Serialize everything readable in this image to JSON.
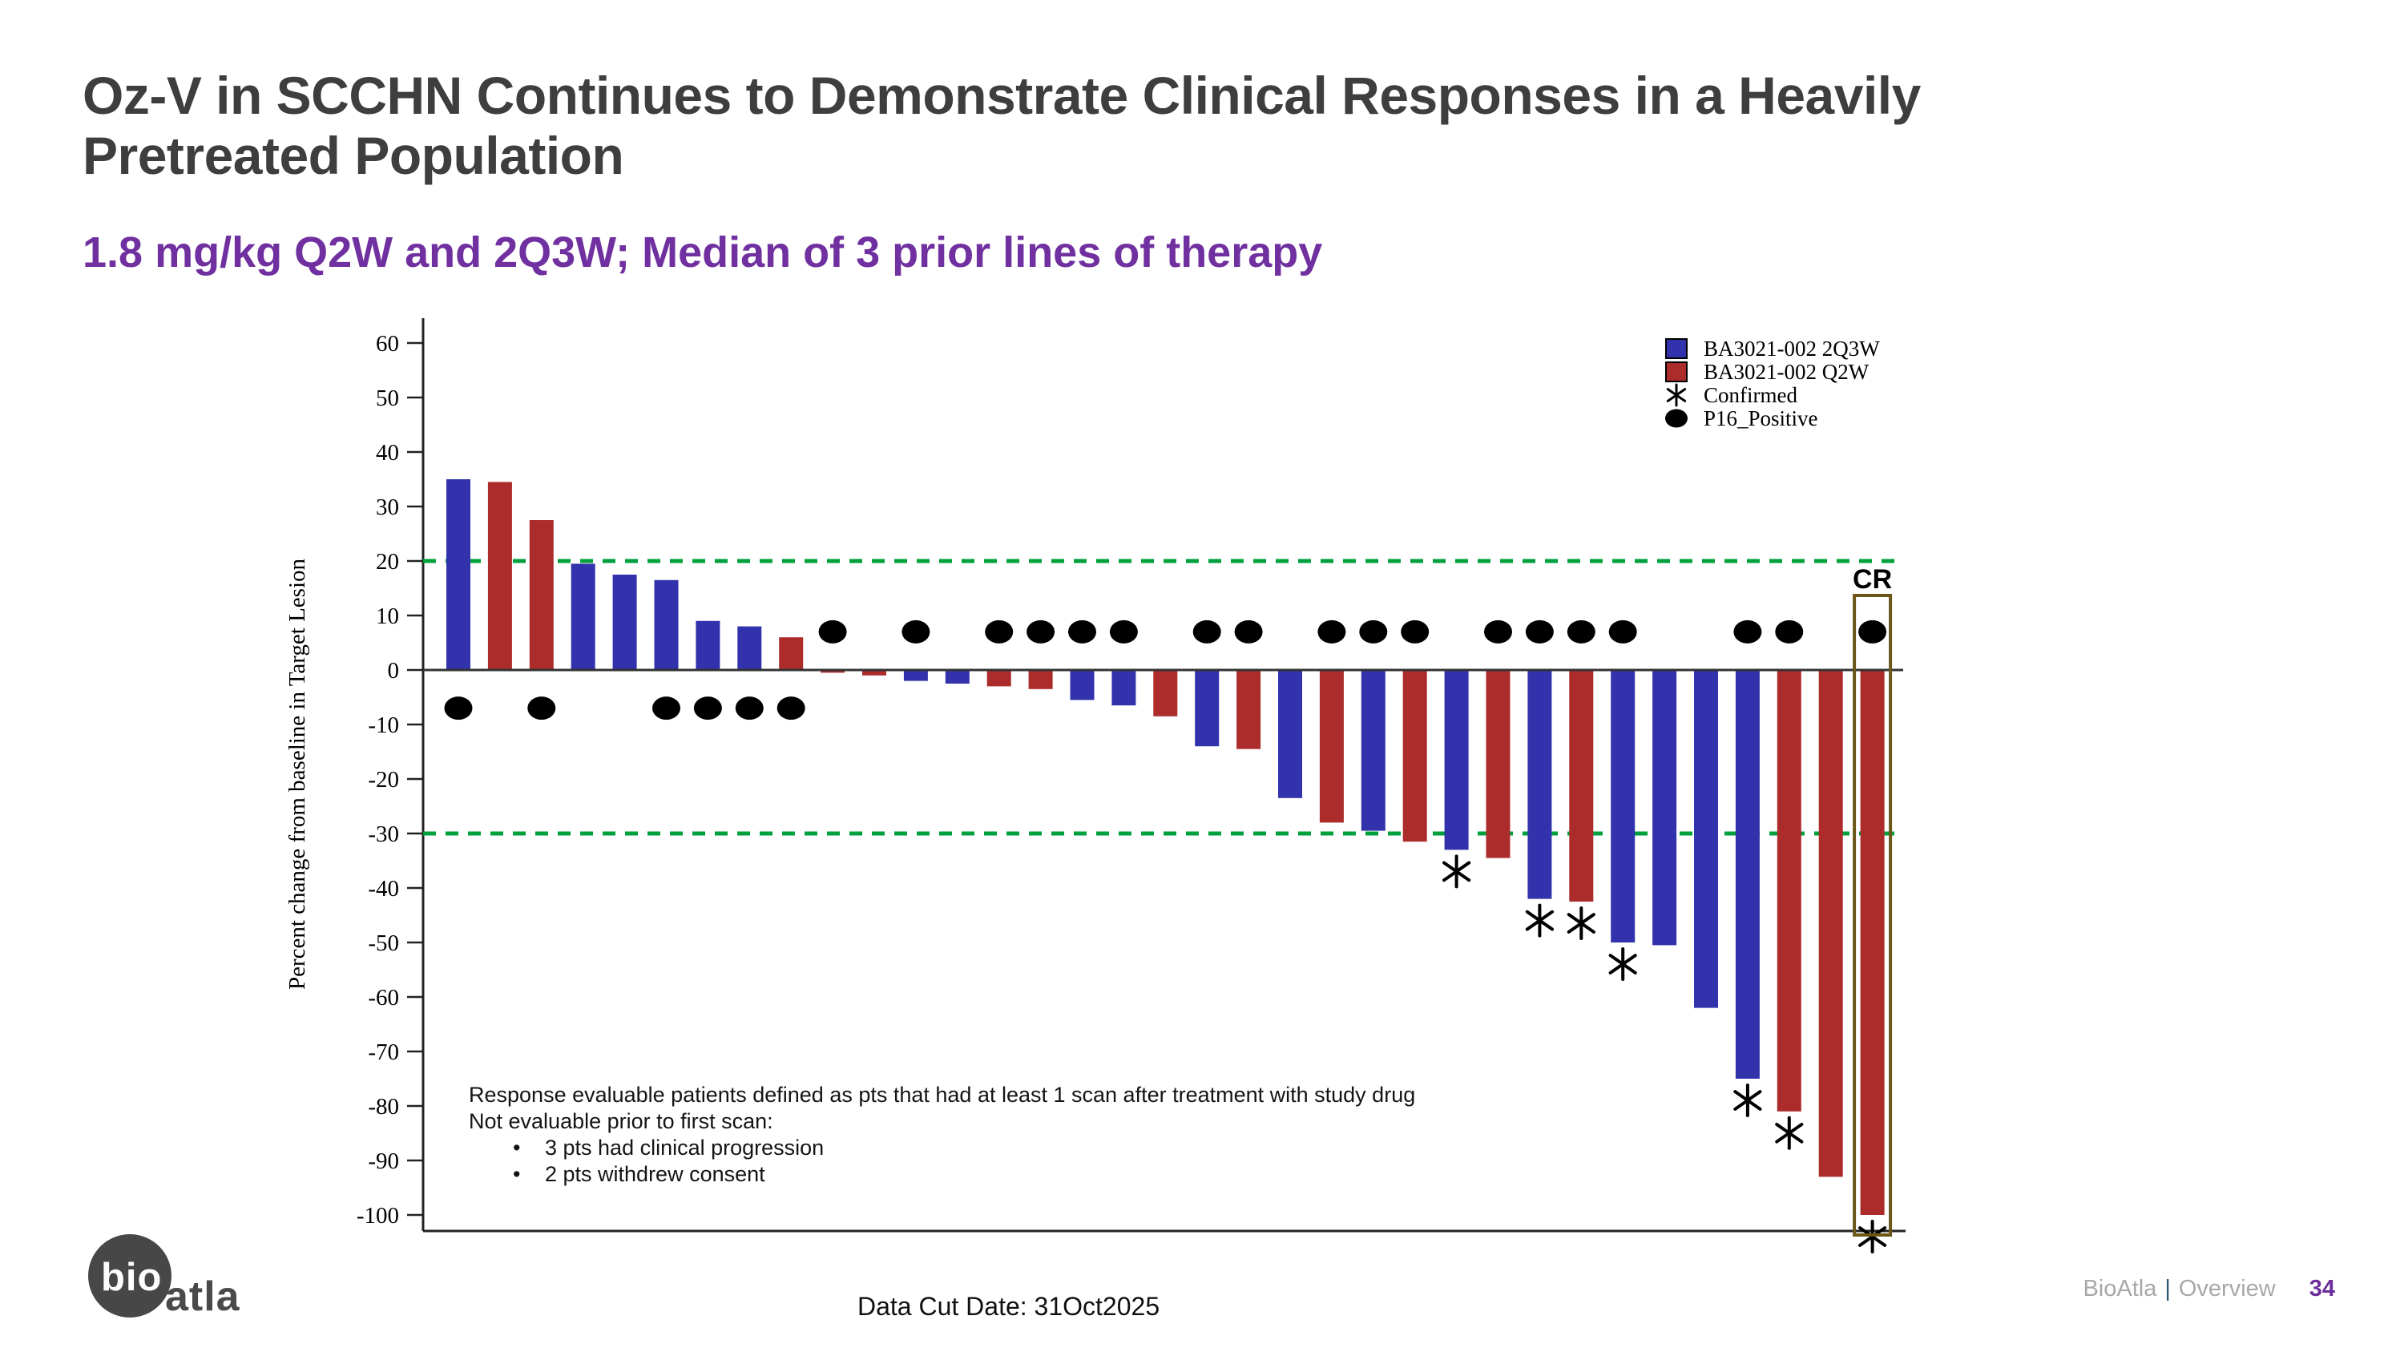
{
  "slide": {
    "title": "Oz-V in SCCHN Continues to Demonstrate Clinical Responses in a Heavily Pretreated Population",
    "subtitle": "1.8 mg/kg Q2W and 2Q3W; Median of 3 prior lines of therapy",
    "data_cut": "Data Cut Date: 31Oct2025",
    "footer": {
      "brand": "BioAtla",
      "separator": "|",
      "section": "Overview",
      "page": "34"
    },
    "logo": {
      "bio": "bio",
      "atla": "atla"
    }
  },
  "annotation": {
    "line1": "Response evaluable patients defined as pts that had at least 1 scan after treatment with study drug",
    "line2": "Not evaluable prior to first scan:",
    "bullet_glyph": "•",
    "bullets": [
      "3 pts had clinical progression",
      "2 pts withdrew consent"
    ]
  },
  "colors": {
    "blue": "#3232AC",
    "red": "#AC2B2B",
    "green": "#00A13C",
    "box_gold": "#6B5617",
    "axis": "#222222",
    "zero_line": "#333333",
    "marker_black": "#000000"
  },
  "chart_data": {
    "type": "bar",
    "title": "",
    "xlabel": "",
    "ylabel": "Percent change from baseline in Target Lesion",
    "ylim": [
      -104,
      64
    ],
    "yticks": [
      60,
      50,
      40,
      30,
      20,
      10,
      0,
      -10,
      -20,
      -30,
      -40,
      -50,
      -60,
      -70,
      -80,
      -90,
      -100
    ],
    "reference_lines": [
      20,
      -30
    ],
    "grid": false,
    "legend_position": "top-right",
    "legend": [
      {
        "label": "BA3021-002 2Q3W",
        "marker": "square",
        "color_key": "blue"
      },
      {
        "label": "BA3021-002 Q2W",
        "marker": "square",
        "color_key": "red"
      },
      {
        "label": "Confirmed",
        "marker": "asterisk"
      },
      {
        "label": "P16_Positive",
        "marker": "circle"
      }
    ],
    "cr_label": "CR",
    "p16_dot_value_positive_bars": -7,
    "p16_dot_value_negative_bars": 7,
    "bars": [
      {
        "v": 35,
        "arm": "2Q3W",
        "p16": true,
        "confirmed": false
      },
      {
        "v": 34.5,
        "arm": "Q2W",
        "p16": false,
        "confirmed": false
      },
      {
        "v": 27.5,
        "arm": "Q2W",
        "p16": true,
        "confirmed": false
      },
      {
        "v": 19.5,
        "arm": "2Q3W",
        "p16": false,
        "confirmed": false
      },
      {
        "v": 17.5,
        "arm": "2Q3W",
        "p16": false,
        "confirmed": false
      },
      {
        "v": 16.5,
        "arm": "2Q3W",
        "p16": true,
        "confirmed": false
      },
      {
        "v": 9,
        "arm": "2Q3W",
        "p16": true,
        "confirmed": false
      },
      {
        "v": 8,
        "arm": "2Q3W",
        "p16": true,
        "confirmed": false
      },
      {
        "v": 6,
        "arm": "Q2W",
        "p16": true,
        "confirmed": false
      },
      {
        "v": -0.5,
        "arm": "Q2W",
        "p16": true,
        "confirmed": false
      },
      {
        "v": -1,
        "arm": "Q2W",
        "p16": false,
        "confirmed": false
      },
      {
        "v": -2,
        "arm": "2Q3W",
        "p16": true,
        "confirmed": false
      },
      {
        "v": -2.5,
        "arm": "2Q3W",
        "p16": false,
        "confirmed": false
      },
      {
        "v": -3,
        "arm": "Q2W",
        "p16": true,
        "confirmed": false
      },
      {
        "v": -3.5,
        "arm": "Q2W",
        "p16": true,
        "confirmed": false
      },
      {
        "v": -5.5,
        "arm": "2Q3W",
        "p16": true,
        "confirmed": false
      },
      {
        "v": -6.5,
        "arm": "2Q3W",
        "p16": true,
        "confirmed": false
      },
      {
        "v": -8.5,
        "arm": "Q2W",
        "p16": false,
        "confirmed": false
      },
      {
        "v": -14,
        "arm": "2Q3W",
        "p16": true,
        "confirmed": false
      },
      {
        "v": -14.5,
        "arm": "Q2W",
        "p16": true,
        "confirmed": false
      },
      {
        "v": -23.5,
        "arm": "2Q3W",
        "p16": false,
        "confirmed": false
      },
      {
        "v": -28,
        "arm": "Q2W",
        "p16": true,
        "confirmed": false
      },
      {
        "v": -29.5,
        "arm": "2Q3W",
        "p16": true,
        "confirmed": false
      },
      {
        "v": -31.5,
        "arm": "Q2W",
        "p16": true,
        "confirmed": false
      },
      {
        "v": -33,
        "arm": "2Q3W",
        "p16": false,
        "confirmed": true
      },
      {
        "v": -34.5,
        "arm": "Q2W",
        "p16": true,
        "confirmed": false
      },
      {
        "v": -42,
        "arm": "2Q3W",
        "p16": true,
        "confirmed": true
      },
      {
        "v": -42.5,
        "arm": "Q2W",
        "p16": true,
        "confirmed": true
      },
      {
        "v": -50,
        "arm": "2Q3W",
        "p16": true,
        "confirmed": true
      },
      {
        "v": -50.5,
        "arm": "2Q3W",
        "p16": false,
        "confirmed": false
      },
      {
        "v": -62,
        "arm": "2Q3W",
        "p16": false,
        "confirmed": false
      },
      {
        "v": -75,
        "arm": "2Q3W",
        "p16": true,
        "confirmed": true
      },
      {
        "v": -81,
        "arm": "Q2W",
        "p16": true,
        "confirmed": true
      },
      {
        "v": -93,
        "arm": "Q2W",
        "p16": false,
        "confirmed": false
      },
      {
        "v": -100,
        "arm": "Q2W",
        "p16": true,
        "confirmed": true,
        "cr": true
      }
    ]
  }
}
